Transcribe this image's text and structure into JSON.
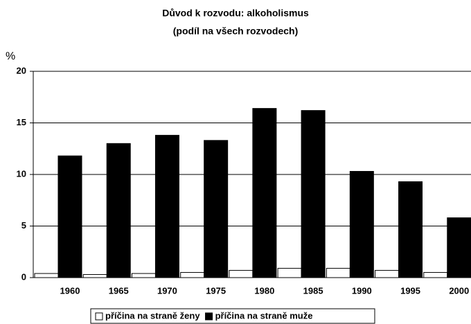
{
  "chart_data": {
    "type": "bar",
    "title": "Důvod k rozvodu: alkoholismus",
    "subtitle": "(podíl na všech rozvodech)",
    "y_label": "%",
    "categories": [
      "1960",
      "1965",
      "1970",
      "1975",
      "1980",
      "1985",
      "1990",
      "1995",
      "2000"
    ],
    "series": [
      {
        "name": "příčina na straně ženy",
        "color": "#ffffff",
        "values": [
          0.4,
          0.3,
          0.4,
          0.5,
          0.7,
          0.9,
          0.9,
          0.7,
          0.5
        ]
      },
      {
        "name": "příčina na straně muže",
        "color": "#000000",
        "values": [
          11.8,
          13.0,
          13.8,
          13.3,
          16.4,
          16.2,
          10.3,
          9.3,
          5.8
        ]
      }
    ],
    "ylim": [
      0,
      20
    ],
    "yticks": [
      0,
      5,
      10,
      15,
      20
    ],
    "grid": true,
    "legend": "bottom"
  }
}
